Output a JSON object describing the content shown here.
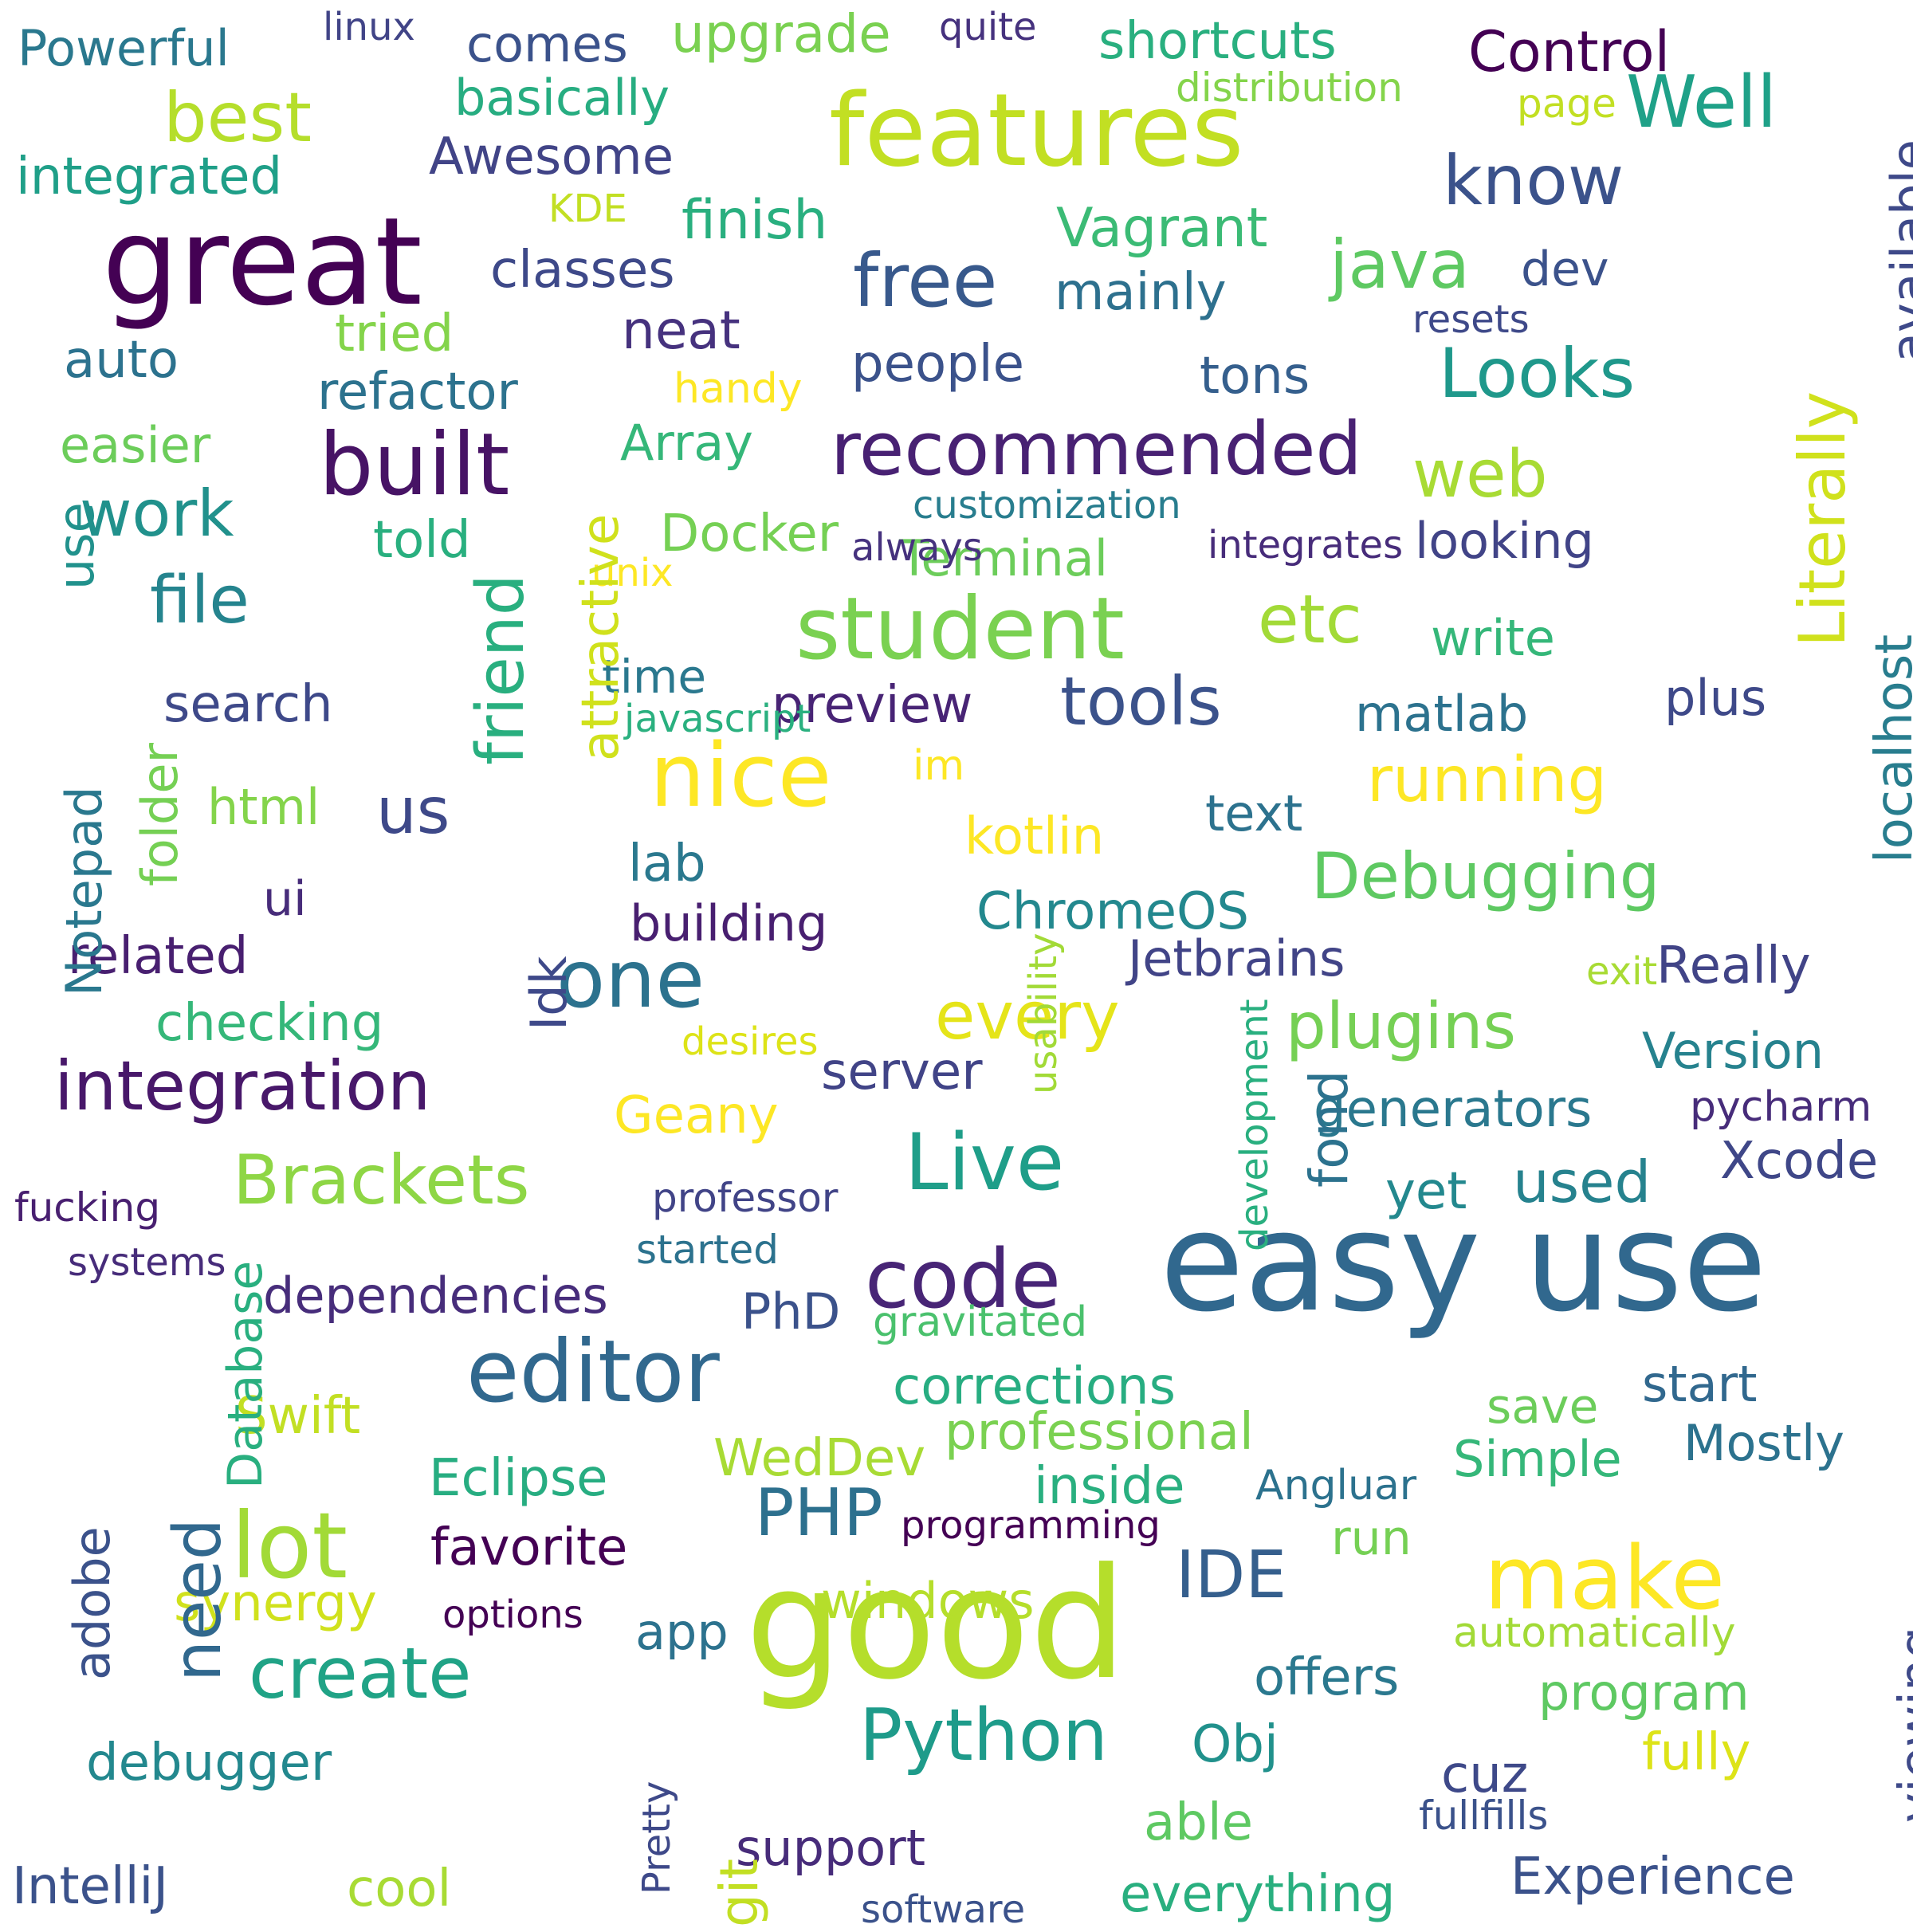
{
  "cloud": {
    "words": [
      {
        "text": "easy use",
        "color": "#31688e",
        "vertical": false
      },
      {
        "text": "good",
        "color": "#b5de2b",
        "vertical": false
      },
      {
        "text": "great",
        "color": "#440154",
        "vertical": false
      },
      {
        "text": "features",
        "color": "#c2df23",
        "vertical": false
      },
      {
        "text": "student",
        "color": "#7ad151",
        "vertical": false
      },
      {
        "text": "built",
        "color": "#471365",
        "vertical": false
      },
      {
        "text": "editor",
        "color": "#31688e",
        "vertical": false
      },
      {
        "text": "nice",
        "color": "#fde725",
        "vertical": false
      },
      {
        "text": "integration",
        "color": "#48186a",
        "vertical": false
      },
      {
        "text": "Live",
        "color": "#1f9e89",
        "vertical": false
      },
      {
        "text": "code",
        "color": "#482576",
        "vertical": false
      },
      {
        "text": "lot",
        "color": "#a2da37",
        "vertical": false
      },
      {
        "text": "make",
        "color": "#fde725",
        "vertical": false
      },
      {
        "text": "one",
        "color": "#2c728e",
        "vertical": false
      },
      {
        "text": "recommended",
        "color": "#482173",
        "vertical": false
      },
      {
        "text": "Brackets",
        "color": "#8ed645",
        "vertical": false
      },
      {
        "text": "Python",
        "color": "#1e9b8a",
        "vertical": false
      },
      {
        "text": "create",
        "color": "#20a386",
        "vertical": false
      },
      {
        "text": "best",
        "color": "#b5de2b",
        "vertical": false
      },
      {
        "text": "Looks",
        "color": "#1f988b",
        "vertical": false
      },
      {
        "text": "Debugging",
        "color": "#5ec962",
        "vertical": false
      },
      {
        "text": "plugins",
        "color": "#75d054",
        "vertical": false
      },
      {
        "text": "tools",
        "color": "#3b528b",
        "vertical": false
      },
      {
        "text": "running",
        "color": "#fde725",
        "vertical": false
      },
      {
        "text": "every",
        "color": "#e5e419",
        "vertical": false
      },
      {
        "text": "free",
        "color": "#38598c",
        "vertical": false
      },
      {
        "text": "file",
        "color": "#25848e",
        "vertical": false
      },
      {
        "text": "work",
        "color": "#21918c",
        "vertical": false
      },
      {
        "text": "know",
        "color": "#3b528b",
        "vertical": false
      },
      {
        "text": "Well",
        "color": "#1fa188",
        "vertical": false
      },
      {
        "text": "web",
        "color": "#a8db34",
        "vertical": false
      },
      {
        "text": "etc",
        "color": "#a2da37",
        "vertical": false
      },
      {
        "text": "java",
        "color": "#5ec962",
        "vertical": false
      },
      {
        "text": "PHP",
        "color": "#2d708e",
        "vertical": false
      },
      {
        "text": "IDE",
        "color": "#355f8d",
        "vertical": false
      },
      {
        "text": "us",
        "color": "#3e4989",
        "vertical": false
      },
      {
        "text": "used",
        "color": "#26828e",
        "vertical": false
      },
      {
        "text": "Control",
        "color": "#440154",
        "vertical": false
      },
      {
        "text": "Xcode",
        "color": "#3f4788",
        "vertical": false
      },
      {
        "text": "Powerful",
        "color": "#2a788e",
        "vertical": false
      },
      {
        "text": "upgrade",
        "color": "#7ad151",
        "vertical": false
      },
      {
        "text": "shortcuts",
        "color": "#29af7f",
        "vertical": false
      },
      {
        "text": "comes",
        "color": "#3b528b",
        "vertical": false
      },
      {
        "text": "basically",
        "color": "#27ad81",
        "vertical": false
      },
      {
        "text": "integrated",
        "color": "#1f9f88",
        "vertical": false
      },
      {
        "text": "Awesome",
        "color": "#414487",
        "vertical": false
      },
      {
        "text": "finish",
        "color": "#29af7f",
        "vertical": false
      },
      {
        "text": "Vagrant",
        "color": "#3bbb75",
        "vertical": false
      },
      {
        "text": "classes",
        "color": "#3e4989",
        "vertical": false
      },
      {
        "text": "mainly",
        "color": "#2d708e",
        "vertical": false
      },
      {
        "text": "dev",
        "color": "#3b528b",
        "vertical": false
      },
      {
        "text": "tried",
        "color": "#84d44b",
        "vertical": false
      },
      {
        "text": "neat",
        "color": "#46327e",
        "vertical": false
      },
      {
        "text": "auto",
        "color": "#2c728e",
        "vertical": false
      },
      {
        "text": "people",
        "color": "#3b528b",
        "vertical": false
      },
      {
        "text": "tons",
        "color": "#355f8d",
        "vertical": false
      },
      {
        "text": "refactor",
        "color": "#2c728e",
        "vertical": false
      },
      {
        "text": "Array",
        "color": "#35b779",
        "vertical": false
      },
      {
        "text": "easier",
        "color": "#6ccd5a",
        "vertical": false
      },
      {
        "text": "told",
        "color": "#29af7f",
        "vertical": false
      },
      {
        "text": "Docker",
        "color": "#75d054",
        "vertical": false
      },
      {
        "text": "Terminal",
        "color": "#6ccd5a",
        "vertical": false
      },
      {
        "text": "looking",
        "color": "#414487",
        "vertical": false
      },
      {
        "text": "write",
        "color": "#35b779",
        "vertical": false
      },
      {
        "text": "time",
        "color": "#2a788e",
        "vertical": false
      },
      {
        "text": "preview",
        "color": "#482475",
        "vertical": false
      },
      {
        "text": "search",
        "color": "#3e4989",
        "vertical": false
      },
      {
        "text": "matlab",
        "color": "#2c728e",
        "vertical": false
      },
      {
        "text": "plus",
        "color": "#3e4989",
        "vertical": false
      },
      {
        "text": "html",
        "color": "#84d44b",
        "vertical": false
      },
      {
        "text": "kotlin",
        "color": "#fde725",
        "vertical": false
      },
      {
        "text": "text",
        "color": "#2c728e",
        "vertical": false
      },
      {
        "text": "lab",
        "color": "#2a788e",
        "vertical": false
      },
      {
        "text": "ui",
        "color": "#472c7a",
        "vertical": false
      },
      {
        "text": "building",
        "color": "#481f70",
        "vertical": false
      },
      {
        "text": "ChromeOS",
        "color": "#23888e",
        "vertical": false
      },
      {
        "text": "related",
        "color": "#481f70",
        "vertical": false
      },
      {
        "text": "Jetbrains",
        "color": "#414487",
        "vertical": false
      },
      {
        "text": "Really",
        "color": "#414487",
        "vertical": false
      },
      {
        "text": "checking",
        "color": "#35b779",
        "vertical": false
      },
      {
        "text": "server",
        "color": "#414487",
        "vertical": false
      },
      {
        "text": "Version",
        "color": "#26828e",
        "vertical": false
      },
      {
        "text": "Geany",
        "color": "#fde725",
        "vertical": false
      },
      {
        "text": "generators",
        "color": "#2a788e",
        "vertical": false
      },
      {
        "text": "pycharm",
        "color": "#472c7a",
        "vertical": false
      },
      {
        "text": "yet",
        "color": "#23888e",
        "vertical": false
      },
      {
        "text": "fucking",
        "color": "#481f70",
        "vertical": false
      },
      {
        "text": "professor",
        "color": "#414487",
        "vertical": false
      },
      {
        "text": "started",
        "color": "#2c728e",
        "vertical": false
      },
      {
        "text": "systems",
        "color": "#472c7a",
        "vertical": false
      },
      {
        "text": "dependencies",
        "color": "#472d7b",
        "vertical": false
      },
      {
        "text": "PhD",
        "color": "#3b528b",
        "vertical": false
      },
      {
        "text": "gravitated",
        "color": "#4ac16d",
        "vertical": false
      },
      {
        "text": "corrections",
        "color": "#27ad81",
        "vertical": false
      },
      {
        "text": "start",
        "color": "#31688e",
        "vertical": false
      },
      {
        "text": "save",
        "color": "#6ccd5a",
        "vertical": false
      },
      {
        "text": "Swift",
        "color": "#c2df23",
        "vertical": false
      },
      {
        "text": "professional",
        "color": "#7ad151",
        "vertical": false
      },
      {
        "text": "WedDev",
        "color": "#a8db34",
        "vertical": false
      },
      {
        "text": "Simple",
        "color": "#35b779",
        "vertical": false
      },
      {
        "text": "Mostly",
        "color": "#2c728e",
        "vertical": false
      },
      {
        "text": "Eclipse",
        "color": "#27ad81",
        "vertical": false
      },
      {
        "text": "inside",
        "color": "#29af7f",
        "vertical": false
      },
      {
        "text": "Angluar",
        "color": "#2c728e",
        "vertical": false
      },
      {
        "text": "programming",
        "color": "#440154",
        "vertical": false
      },
      {
        "text": "favorite",
        "color": "#440154",
        "vertical": false
      },
      {
        "text": "run",
        "color": "#75d054",
        "vertical": false
      },
      {
        "text": "synergy",
        "color": "#d0e11c",
        "vertical": false
      },
      {
        "text": "windows",
        "color": "#b5de2b",
        "vertical": false
      },
      {
        "text": "options",
        "color": "#440154",
        "vertical": false
      },
      {
        "text": "app",
        "color": "#2c728e",
        "vertical": false
      },
      {
        "text": "automatically",
        "color": "#a2da37",
        "vertical": false
      },
      {
        "text": "offers",
        "color": "#2a788e",
        "vertical": false
      },
      {
        "text": "program",
        "color": "#5ec962",
        "vertical": false
      },
      {
        "text": "debugger",
        "color": "#23888e",
        "vertical": false
      },
      {
        "text": "Obj",
        "color": "#21918c",
        "vertical": false
      },
      {
        "text": "fully",
        "color": "#dde318",
        "vertical": false
      },
      {
        "text": "cuz",
        "color": "#3e4989",
        "vertical": false
      },
      {
        "text": "able",
        "color": "#5ec962",
        "vertical": false
      },
      {
        "text": "fullfills",
        "color": "#3b528b",
        "vertical": false
      },
      {
        "text": "support",
        "color": "#472c7a",
        "vertical": false
      },
      {
        "text": "IntelliJ",
        "color": "#3b528b",
        "vertical": false
      },
      {
        "text": "cool",
        "color": "#a8db34",
        "vertical": false
      },
      {
        "text": "everything",
        "color": "#29af7f",
        "vertical": false
      },
      {
        "text": "Experience",
        "color": "#3b528b",
        "vertical": false
      },
      {
        "text": "software",
        "color": "#3b528b",
        "vertical": false
      },
      {
        "text": "linux",
        "color": "#414487",
        "vertical": false
      },
      {
        "text": "quite",
        "color": "#46327e",
        "vertical": false
      },
      {
        "text": "distribution",
        "color": "#84d44b",
        "vertical": false
      },
      {
        "text": "page",
        "color": "#c2df23",
        "vertical": false
      },
      {
        "text": "KDE",
        "color": "#c2df23",
        "vertical": false
      },
      {
        "text": "resets",
        "color": "#3e4989",
        "vertical": false
      },
      {
        "text": "handy",
        "color": "#fde725",
        "vertical": false
      },
      {
        "text": "customization",
        "color": "#287d8e",
        "vertical": false
      },
      {
        "text": "always",
        "color": "#46327e",
        "vertical": false
      },
      {
        "text": "integrates",
        "color": "#472c7a",
        "vertical": false
      },
      {
        "text": "unix",
        "color": "#fde725",
        "vertical": false
      },
      {
        "text": "javascript",
        "color": "#2ab07f",
        "vertical": false
      },
      {
        "text": "im",
        "color": "#fde725",
        "vertical": false
      },
      {
        "text": "exit",
        "color": "#a8db34",
        "vertical": false
      },
      {
        "text": "desires",
        "color": "#dde318",
        "vertical": false
      },
      {
        "text": "usability",
        "color": "#a2da37",
        "vertical": true
      },
      {
        "text": "available",
        "color": "#3e4989",
        "vertical": true
      },
      {
        "text": "Literally",
        "color": "#d0e11c",
        "vertical": true
      },
      {
        "text": "localhost",
        "color": "#287d8e",
        "vertical": true
      },
      {
        "text": "use",
        "color": "#21918c",
        "vertical": true
      },
      {
        "text": "friend",
        "color": "#29af7f",
        "vertical": true
      },
      {
        "text": "attractive",
        "color": "#d0e11c",
        "vertical": true
      },
      {
        "text": "Notepad",
        "color": "#2a788e",
        "vertical": true
      },
      {
        "text": "folder",
        "color": "#75d054",
        "vertical": true
      },
      {
        "text": "Idk",
        "color": "#3e4989",
        "vertical": true
      },
      {
        "text": "fond",
        "color": "#2c728e",
        "vertical": true
      },
      {
        "text": "development",
        "color": "#29af7f",
        "vertical": true
      },
      {
        "text": "adobe",
        "color": "#3b528b",
        "vertical": true
      },
      {
        "text": "need",
        "color": "#31688e",
        "vertical": true
      },
      {
        "text": "Database",
        "color": "#29af7f",
        "vertical": true
      },
      {
        "text": "viewing",
        "color": "#3e4989",
        "vertical": true
      },
      {
        "text": "Pretty",
        "color": "#3e4989",
        "vertical": true
      },
      {
        "text": "git",
        "color": "#c2df23",
        "vertical": true
      }
    ]
  }
}
